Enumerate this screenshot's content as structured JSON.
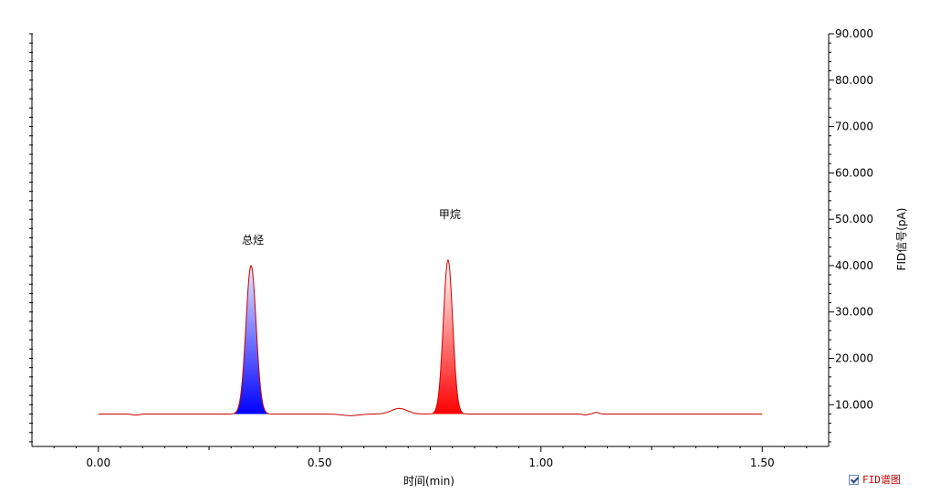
{
  "chart_data": {
    "type": "line",
    "xlabel": "时间(min)",
    "ylabel": "FID信号(pA)",
    "xlim": [
      -0.15,
      1.65
    ],
    "ylim": [
      1.0,
      90.0
    ],
    "x_ticks": [
      "0.00",
      "0.50",
      "1.00",
      "1.50"
    ],
    "y_ticks": [
      "10.000",
      "20.000",
      "30.000",
      "40.000",
      "50.000",
      "60.000",
      "70.000",
      "80.000",
      "90.000"
    ],
    "baseline": 8.0,
    "x_range": [
      0.0,
      1.5
    ],
    "peaks": [
      {
        "name": "总烃",
        "x": 0.345,
        "y": 40.0,
        "color": "#0000ff"
      },
      {
        "name": "甲烷",
        "x": 0.79,
        "y": 41.2,
        "color": "#ff0000"
      }
    ],
    "line_color": "#cc0000",
    "grid": false
  },
  "legend": {
    "label": "FID谱图",
    "checked": true
  }
}
